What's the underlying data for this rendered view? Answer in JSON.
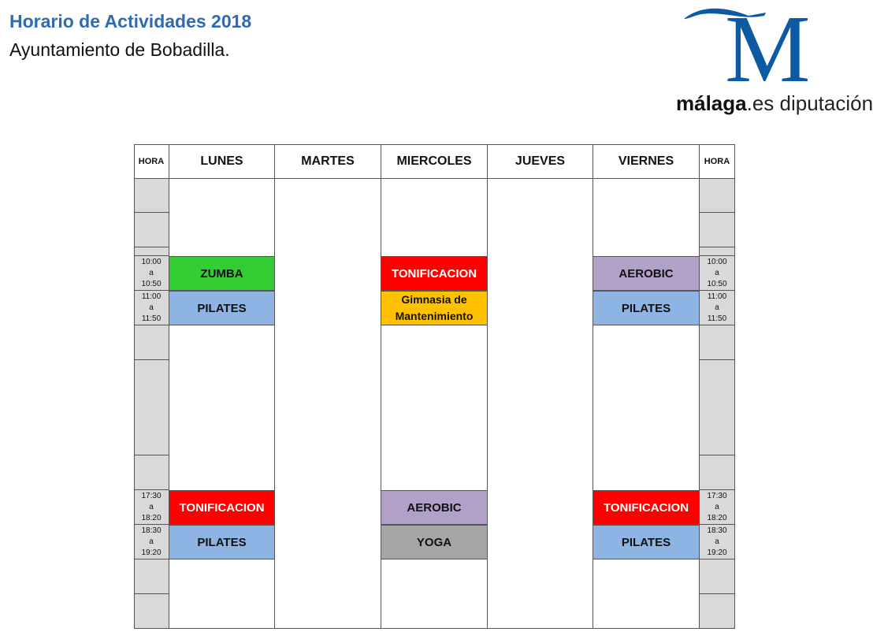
{
  "header": {
    "title": "Horario de Actividades 2018",
    "subtitle": "Ayuntamiento de Bobadilla."
  },
  "logo": {
    "letter": "M",
    "text_bold": "málaga",
    "text_rest": ".es diputación",
    "color": "#0b5aa3"
  },
  "table": {
    "hora_label": "HORA",
    "days": [
      "LUNES",
      "MARTES",
      "MIERCOLES",
      "JUEVES",
      "VIERNES"
    ],
    "time_slots": [
      "",
      "",
      "",
      "10:00\na\n10:50",
      "11:00\na\n11:50",
      "",
      "",
      "",
      "17:30\na\n18:20",
      "18:30\na\n19:20",
      "",
      ""
    ],
    "activities": [
      {
        "day": 0,
        "slot": 3,
        "label": "ZUMBA",
        "color": "#33cc33",
        "text_color": "#111111"
      },
      {
        "day": 0,
        "slot": 4,
        "label": "PILATES",
        "color": "#8eb4e3",
        "text_color": "#111111"
      },
      {
        "day": 0,
        "slot": 8,
        "label": "TONIFICACION",
        "color": "#ff0000",
        "text_color": "#ffffff"
      },
      {
        "day": 0,
        "slot": 9,
        "label": "PILATES",
        "color": "#8eb4e3",
        "text_color": "#111111"
      },
      {
        "day": 2,
        "slot": 3,
        "label": "TONIFICACION",
        "color": "#ff0000",
        "text_color": "#ffffff"
      },
      {
        "day": 2,
        "slot": 4,
        "label": "Gimnasia de Mantenimiento",
        "color": "#ffc000",
        "text_color": "#111111"
      },
      {
        "day": 2,
        "slot": 8,
        "label": "AEROBIC",
        "color": "#b1a0c7",
        "text_color": "#111111"
      },
      {
        "day": 2,
        "slot": 9,
        "label": "YOGA",
        "color": "#a6a6a6",
        "text_color": "#111111"
      },
      {
        "day": 4,
        "slot": 3,
        "label": "AEROBIC",
        "color": "#b1a0c7",
        "text_color": "#111111"
      },
      {
        "day": 4,
        "slot": 4,
        "label": "PILATES",
        "color": "#8eb4e3",
        "text_color": "#111111"
      },
      {
        "day": 4,
        "slot": 8,
        "label": "TONIFICACION",
        "color": "#ff0000",
        "text_color": "#ffffff"
      },
      {
        "day": 4,
        "slot": 9,
        "label": "PILATES",
        "color": "#8eb4e3",
        "text_color": "#111111"
      }
    ]
  }
}
